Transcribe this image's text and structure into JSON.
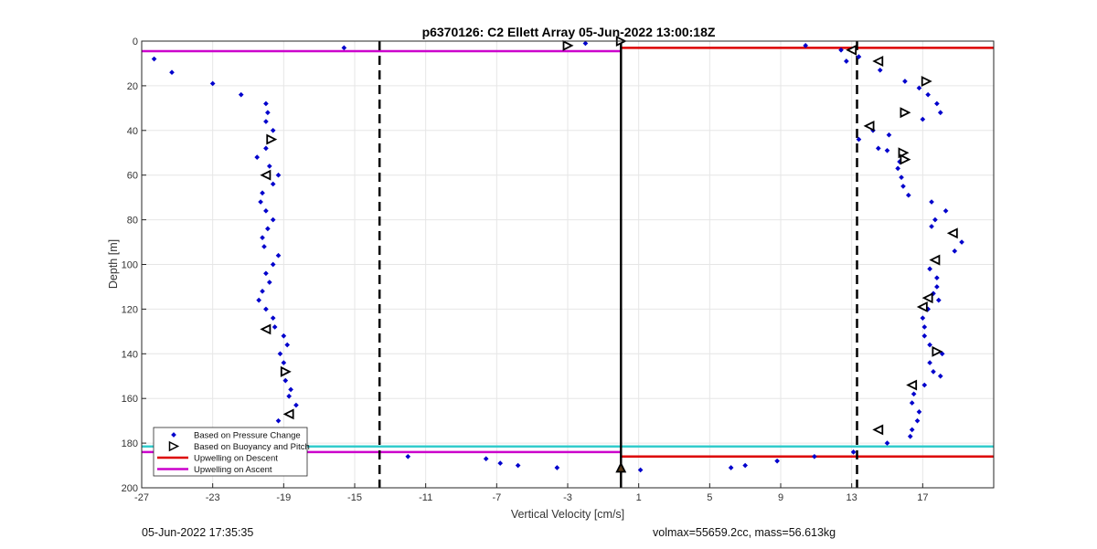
{
  "footer": {
    "timestamp": "05-Jun-2022 17:35:35",
    "params": "volmax=55659.2cc, mass=56.613kg"
  },
  "colors": {
    "pressure_points": "#0000cc",
    "buoyancy_markers": "#000000",
    "descent_line": "#dd0000",
    "ascent_line": "#cc00cc",
    "cyan_line": "#33cccc",
    "grid": "#e6e6e6"
  },
  "chart_data": {
    "type": "scatter",
    "title": "p6370126: C2 Ellett Array 05-Jun-2022 13:00:18Z",
    "xlabel": "Vertical Velocity [cm/s]",
    "ylabel": "Depth [m]",
    "xlim": [
      -27,
      21
    ],
    "ylim": [
      0,
      200
    ],
    "y_reversed": true,
    "xticks": [
      -27,
      -23,
      -19,
      -15,
      -11,
      -7,
      -3,
      1,
      5,
      9,
      13,
      17
    ],
    "yticks": [
      0,
      20,
      40,
      60,
      80,
      100,
      120,
      140,
      160,
      180,
      200
    ],
    "grid": true,
    "legend_placement": "bottom-left",
    "legend": [
      {
        "label": "Based on Pressure Change",
        "style": "point"
      },
      {
        "label": "Based on Buoyancy and Pitch",
        "style": "triangle"
      },
      {
        "label": "Upwelling on Descent",
        "style": "line-red"
      },
      {
        "label": "Upwelling on Ascent",
        "style": "line-magenta"
      }
    ],
    "vertical_lines": [
      {
        "x": -13.6,
        "style": "dashed"
      },
      {
        "x": 0.0,
        "style": "solid"
      },
      {
        "x": 13.3,
        "style": "dashed"
      }
    ],
    "horizontal_lines": [
      {
        "series": "Upwelling on Ascent",
        "y": 4.5,
        "x_from": -27,
        "x_to": 0
      },
      {
        "series": "Upwelling on Descent",
        "y": 3,
        "x_from": 0,
        "x_to": 21
      },
      {
        "series": "cyan",
        "y": 181.5,
        "x_from": -27,
        "x_to": 21
      },
      {
        "series": "Upwelling on Ascent",
        "y": 184,
        "x_from": -27,
        "x_to": 0
      },
      {
        "series": "Upwelling on Descent",
        "y": 186,
        "x_from": 0,
        "x_to": 21
      }
    ],
    "pressure_points": [
      {
        "x": -26.3,
        "y": 8
      },
      {
        "x": -25.3,
        "y": 14
      },
      {
        "x": -23.0,
        "y": 19
      },
      {
        "x": -21.4,
        "y": 24
      },
      {
        "x": -20.0,
        "y": 28
      },
      {
        "x": -19.9,
        "y": 32
      },
      {
        "x": -20.0,
        "y": 36
      },
      {
        "x": -19.6,
        "y": 40
      },
      {
        "x": -20.0,
        "y": 48
      },
      {
        "x": -20.5,
        "y": 52
      },
      {
        "x": -19.8,
        "y": 56
      },
      {
        "x": -19.3,
        "y": 60
      },
      {
        "x": -19.6,
        "y": 64
      },
      {
        "x": -20.2,
        "y": 68
      },
      {
        "x": -20.3,
        "y": 72
      },
      {
        "x": -20.0,
        "y": 76
      },
      {
        "x": -19.6,
        "y": 80
      },
      {
        "x": -19.9,
        "y": 84
      },
      {
        "x": -20.2,
        "y": 88
      },
      {
        "x": -20.1,
        "y": 92
      },
      {
        "x": -19.3,
        "y": 96
      },
      {
        "x": -19.6,
        "y": 100
      },
      {
        "x": -20.0,
        "y": 104
      },
      {
        "x": -19.8,
        "y": 108
      },
      {
        "x": -20.2,
        "y": 112
      },
      {
        "x": -20.4,
        "y": 116
      },
      {
        "x": -20.0,
        "y": 120
      },
      {
        "x": -19.6,
        "y": 124
      },
      {
        "x": -19.5,
        "y": 128
      },
      {
        "x": -19.0,
        "y": 132
      },
      {
        "x": -18.8,
        "y": 136
      },
      {
        "x": -19.2,
        "y": 140
      },
      {
        "x": -19.0,
        "y": 144
      },
      {
        "x": -18.9,
        "y": 152
      },
      {
        "x": -18.6,
        "y": 156
      },
      {
        "x": -18.7,
        "y": 159
      },
      {
        "x": -18.3,
        "y": 163
      },
      {
        "x": -19.3,
        "y": 170
      },
      {
        "x": -19.6,
        "y": 174
      },
      {
        "x": -20.0,
        "y": 178
      },
      {
        "x": -15.6,
        "y": 3
      },
      {
        "x": -2.0,
        "y": 1
      },
      {
        "x": -12.0,
        "y": 186
      },
      {
        "x": -7.6,
        "y": 187
      },
      {
        "x": -6.8,
        "y": 189
      },
      {
        "x": -5.8,
        "y": 190
      },
      {
        "x": -3.6,
        "y": 191
      },
      {
        "x": 1.1,
        "y": 192
      },
      {
        "x": 6.2,
        "y": 191
      },
      {
        "x": 7.0,
        "y": 190
      },
      {
        "x": 8.8,
        "y": 188
      },
      {
        "x": 10.9,
        "y": 186
      },
      {
        "x": 13.1,
        "y": 184
      },
      {
        "x": 15.0,
        "y": 180
      },
      {
        "x": 16.3,
        "y": 177
      },
      {
        "x": 10.4,
        "y": 2
      },
      {
        "x": 12.4,
        "y": 4
      },
      {
        "x": 12.7,
        "y": 9
      },
      {
        "x": 13.4,
        "y": 7
      },
      {
        "x": 14.6,
        "y": 13
      },
      {
        "x": 16.0,
        "y": 18
      },
      {
        "x": 16.8,
        "y": 21
      },
      {
        "x": 17.3,
        "y": 24
      },
      {
        "x": 17.8,
        "y": 28
      },
      {
        "x": 18.0,
        "y": 32
      },
      {
        "x": 17.0,
        "y": 35
      },
      {
        "x": 13.4,
        "y": 44
      },
      {
        "x": 14.2,
        "y": 40
      },
      {
        "x": 15.1,
        "y": 42
      },
      {
        "x": 14.5,
        "y": 48
      },
      {
        "x": 15.0,
        "y": 49
      },
      {
        "x": 15.7,
        "y": 54
      },
      {
        "x": 15.6,
        "y": 57
      },
      {
        "x": 15.8,
        "y": 61
      },
      {
        "x": 15.9,
        "y": 65
      },
      {
        "x": 16.2,
        "y": 69
      },
      {
        "x": 17.5,
        "y": 72
      },
      {
        "x": 18.3,
        "y": 76
      },
      {
        "x": 17.7,
        "y": 80
      },
      {
        "x": 17.5,
        "y": 83
      },
      {
        "x": 19.2,
        "y": 90
      },
      {
        "x": 18.8,
        "y": 94
      },
      {
        "x": 17.4,
        "y": 102
      },
      {
        "x": 17.8,
        "y": 106
      },
      {
        "x": 17.8,
        "y": 110
      },
      {
        "x": 17.6,
        "y": 113
      },
      {
        "x": 17.9,
        "y": 116
      },
      {
        "x": 17.3,
        "y": 120
      },
      {
        "x": 17.0,
        "y": 124
      },
      {
        "x": 17.1,
        "y": 128
      },
      {
        "x": 17.1,
        "y": 132
      },
      {
        "x": 17.4,
        "y": 136
      },
      {
        "x": 18.1,
        "y": 140
      },
      {
        "x": 17.4,
        "y": 144
      },
      {
        "x": 17.6,
        "y": 148
      },
      {
        "x": 18.0,
        "y": 150
      },
      {
        "x": 17.1,
        "y": 154
      },
      {
        "x": 16.5,
        "y": 158
      },
      {
        "x": 16.4,
        "y": 162
      },
      {
        "x": 16.8,
        "y": 166
      },
      {
        "x": 16.7,
        "y": 170
      },
      {
        "x": 16.4,
        "y": 174
      }
    ],
    "buoyancy_markers": [
      {
        "x": -3.0,
        "y": 2,
        "dir": "right"
      },
      {
        "x": 0.0,
        "y": 0,
        "dir": "right"
      },
      {
        "x": -19.7,
        "y": 44,
        "dir": "right"
      },
      {
        "x": -20.0,
        "y": 60,
        "dir": "left"
      },
      {
        "x": -20.0,
        "y": 129,
        "dir": "left"
      },
      {
        "x": -18.9,
        "y": 148,
        "dir": "right"
      },
      {
        "x": -18.7,
        "y": 167,
        "dir": "left"
      },
      {
        "x": -19.6,
        "y": 183,
        "dir": "up"
      },
      {
        "x": 0.0,
        "y": 191,
        "dir": "up"
      },
      {
        "x": 13.0,
        "y": 4,
        "dir": "left"
      },
      {
        "x": 14.5,
        "y": 9,
        "dir": "left"
      },
      {
        "x": 17.2,
        "y": 18,
        "dir": "right"
      },
      {
        "x": 16.0,
        "y": 32,
        "dir": "right"
      },
      {
        "x": 14.0,
        "y": 38,
        "dir": "left"
      },
      {
        "x": 15.9,
        "y": 50,
        "dir": "right"
      },
      {
        "x": 16.0,
        "y": 53,
        "dir": "right"
      },
      {
        "x": 18.7,
        "y": 86,
        "dir": "left"
      },
      {
        "x": 17.7,
        "y": 98,
        "dir": "left"
      },
      {
        "x": 17.3,
        "y": 115,
        "dir": "left"
      },
      {
        "x": 17.0,
        "y": 119,
        "dir": "left"
      },
      {
        "x": 17.8,
        "y": 139,
        "dir": "right"
      },
      {
        "x": 16.4,
        "y": 154,
        "dir": "left"
      },
      {
        "x": 14.5,
        "y": 174,
        "dir": "left"
      }
    ]
  }
}
